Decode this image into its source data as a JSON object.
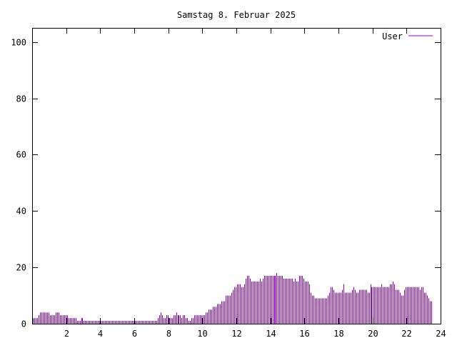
{
  "chart_data": {
    "type": "bar",
    "title": "Samstag 8. Februar 2025",
    "xlabel": "",
    "ylabel": "",
    "xlim": [
      0,
      24
    ],
    "ylim": [
      0,
      105
    ],
    "x_ticks": [
      2,
      4,
      6,
      8,
      10,
      12,
      14,
      16,
      18,
      20,
      22,
      24
    ],
    "y_ticks": [
      0,
      20,
      40,
      60,
      80,
      100
    ],
    "grid": false,
    "legend": "top-right",
    "bar_width_hours": 0.0833,
    "series": [
      {
        "name": "User",
        "color": "#9400d3",
        "values": [
          2,
          2,
          2,
          2,
          3,
          4,
          4,
          4,
          4,
          4,
          4,
          4,
          3,
          3,
          3,
          3,
          4,
          4,
          4,
          3,
          3,
          3,
          3,
          3,
          3,
          2,
          2,
          2,
          2,
          2,
          2,
          1,
          1,
          1,
          2,
          2,
          1,
          1,
          1,
          1,
          1,
          1,
          1,
          1,
          1,
          1,
          1,
          1,
          1,
          1,
          1,
          1,
          1,
          1,
          1,
          1,
          1,
          1,
          1,
          1,
          1,
          1,
          1,
          1,
          1,
          1,
          1,
          1,
          1,
          1,
          1,
          1,
          1,
          1,
          1,
          1,
          1,
          1,
          1,
          1,
          1,
          1,
          1,
          1,
          1,
          1,
          1,
          1,
          2,
          3,
          4,
          3,
          2,
          2,
          3,
          3,
          2,
          2,
          2,
          3,
          3,
          4,
          3,
          3,
          3,
          2,
          3,
          3,
          2,
          2,
          1,
          1,
          2,
          2,
          3,
          3,
          3,
          3,
          3,
          3,
          3,
          3,
          4,
          4,
          5,
          5,
          5,
          6,
          6,
          6,
          7,
          7,
          7,
          8,
          8,
          8,
          10,
          10,
          10,
          10,
          11,
          12,
          13,
          13,
          14,
          14,
          14,
          13,
          13,
          14,
          16,
          17,
          17,
          16,
          15,
          15,
          15,
          15,
          15,
          15,
          16,
          15,
          16,
          17,
          17,
          17,
          17,
          17,
          17,
          17,
          17,
          17,
          18,
          17,
          17,
          17,
          17,
          16,
          16,
          16,
          16,
          16,
          16,
          16,
          15,
          16,
          15,
          15,
          17,
          17,
          17,
          16,
          15,
          15,
          15,
          14,
          11,
          10,
          10,
          9,
          9,
          9,
          9,
          9,
          9,
          9,
          9,
          9,
          10,
          11,
          13,
          13,
          12,
          11,
          11,
          11,
          11,
          11,
          12,
          14,
          11,
          11,
          11,
          11,
          11,
          12,
          13,
          12,
          11,
          11,
          12,
          12,
          12,
          12,
          12,
          12,
          11,
          11,
          14,
          13,
          13,
          13,
          13,
          13,
          13,
          13,
          14,
          13,
          13,
          13,
          13,
          13,
          14,
          14,
          15,
          14,
          12,
          12,
          12,
          11,
          10,
          10,
          12,
          13,
          13,
          13,
          13,
          13,
          13,
          13,
          13,
          13,
          13,
          12,
          13,
          13,
          11,
          11,
          10,
          9,
          8,
          8
        ]
      }
    ]
  }
}
